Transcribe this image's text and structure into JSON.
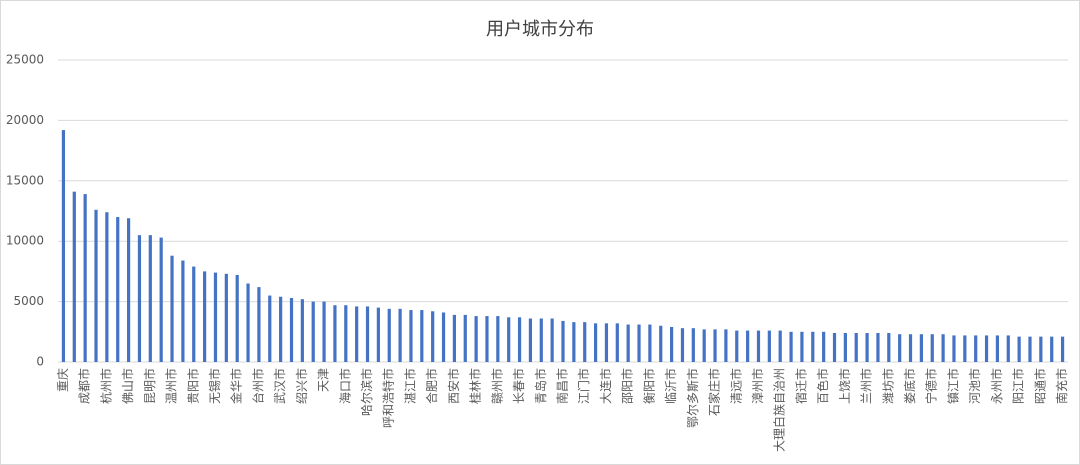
{
  "chart_data": {
    "type": "bar",
    "title": "用户城市分布",
    "categories": [
      "重庆",
      null,
      "成都市",
      null,
      "杭州市",
      null,
      "佛山市",
      null,
      "昆明市",
      null,
      "温州市",
      null,
      "贵阳市",
      null,
      "无锡市",
      null,
      "金华市",
      null,
      "台州市",
      null,
      "武汉市",
      null,
      "绍兴市",
      null,
      "天津",
      null,
      "海口市",
      null,
      "哈尔滨市",
      null,
      "呼和浩特市",
      null,
      "湛江市",
      null,
      "合肥市",
      null,
      "西安市",
      null,
      "桂林市",
      null,
      "赣州市",
      null,
      "长春市",
      null,
      "青岛市",
      null,
      "南昌市",
      null,
      "江门市",
      null,
      "大连市",
      null,
      "邵阳市",
      null,
      "衡阳市",
      null,
      "临沂市",
      null,
      "鄂尔多斯市",
      null,
      "石家庄市",
      null,
      "清远市",
      null,
      "漳州市",
      null,
      "大理白族自治州",
      null,
      "宿迁市",
      null,
      "百色市",
      null,
      "上饶市",
      null,
      "兰州市",
      null,
      "潍坊市",
      null,
      "娄底市",
      null,
      "宁德市",
      null,
      "镇江市",
      null,
      "河池市",
      null,
      "永州市",
      null,
      "阳江市",
      null,
      "昭通市",
      null,
      "南充市"
    ],
    "values": [
      19200,
      14100,
      13900,
      12600,
      12400,
      12000,
      11900,
      10500,
      10500,
      10300,
      8800,
      8400,
      7900,
      7500,
      7400,
      7300,
      7200,
      6500,
      6200,
      5500,
      5400,
      5300,
      5200,
      5000,
      5000,
      4700,
      4700,
      4600,
      4600,
      4500,
      4400,
      4400,
      4300,
      4300,
      4200,
      4100,
      3900,
      3900,
      3800,
      3800,
      3800,
      3700,
      3700,
      3600,
      3600,
      3600,
      3400,
      3300,
      3300,
      3200,
      3200,
      3200,
      3100,
      3100,
      3100,
      3000,
      2900,
      2800,
      2800,
      2700,
      2700,
      2700,
      2600,
      2600,
      2600,
      2600,
      2600,
      2500,
      2500,
      2500,
      2500,
      2400,
      2400,
      2400,
      2400,
      2400,
      2400,
      2300,
      2300,
      2300,
      2300,
      2300,
      2200,
      2200,
      2200,
      2200,
      2200,
      2200,
      2100,
      2100,
      2100,
      2100,
      2100
    ],
    "color": "#4472c4",
    "ylim": [
      0,
      25000
    ],
    "yticks": [
      0,
      5000,
      10000,
      15000,
      20000,
      25000
    ],
    "grid": true
  }
}
